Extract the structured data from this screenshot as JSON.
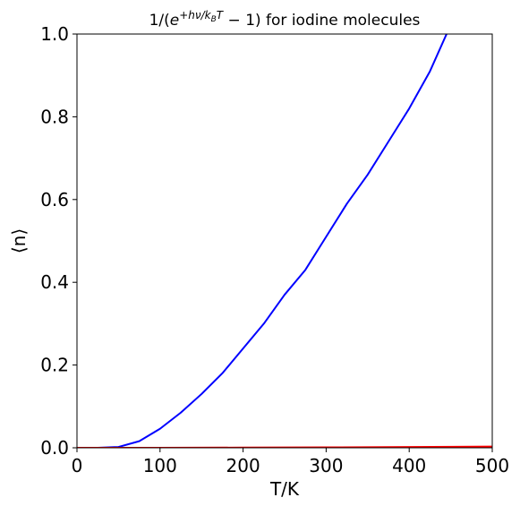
{
  "chart_data": {
    "type": "line",
    "title_parts": {
      "prefix": "1/(",
      "base": "e",
      "exponent": "+hν/k",
      "exponent_sub": "B",
      "exponent_tail": "T",
      "suffix": " − 1) for iodine molecules"
    },
    "xlabel": "T/K",
    "ylabel": "⟨n⟩",
    "xlim": [
      0,
      500
    ],
    "ylim": [
      0,
      1
    ],
    "xticks": [
      0,
      100,
      200,
      300,
      400,
      500
    ],
    "xtick_labels": [
      "0",
      "100",
      "200",
      "300",
      "400",
      "500"
    ],
    "yticks": [
      0,
      0.2,
      0.4,
      0.6,
      0.8,
      1.0
    ],
    "ytick_labels": [
      "0.0",
      "0.2",
      "0.4",
      "0.6",
      "0.8",
      "1.0"
    ],
    "grid": false,
    "series": [
      {
        "color": "#0000ff",
        "x": [
          0,
          25,
          50,
          75,
          100,
          125,
          150,
          175,
          200,
          225,
          250,
          275,
          300,
          325,
          350,
          375,
          400,
          425,
          445
        ],
        "y": [
          0,
          0.0,
          0.002,
          0.016,
          0.046,
          0.085,
          0.13,
          0.18,
          0.24,
          0.3,
          0.37,
          0.43,
          0.51,
          0.59,
          0.66,
          0.74,
          0.82,
          0.91,
          1.0
        ]
      },
      {
        "color": "#ff0000",
        "x": [
          0,
          100,
          200,
          300,
          400,
          500
        ],
        "y": [
          0,
          0,
          0.0005,
          0.001,
          0.002,
          0.003
        ]
      }
    ]
  }
}
